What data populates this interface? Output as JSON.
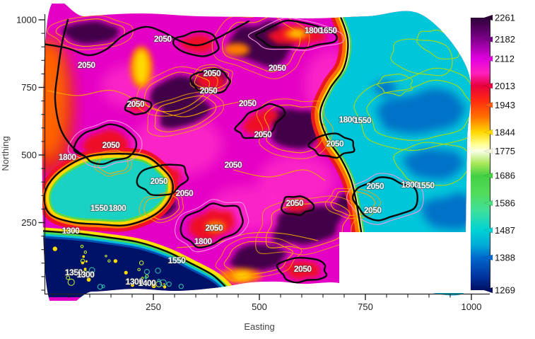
{
  "figure": {
    "background": "#ffffff",
    "axes": {
      "x": {
        "label": "Easting",
        "min": 0,
        "max": 1000,
        "major_ticks": [
          250,
          500,
          750,
          1000
        ],
        "minor_interval": 50
      },
      "y": {
        "label": "Northing",
        "min": 0,
        "max": 1000,
        "major_ticks": [
          250,
          500,
          750,
          1000
        ],
        "minor_interval": 50
      }
    }
  },
  "chart_data": {
    "type": "heatmap",
    "subtype": "filled-contour-surface-map",
    "title": "",
    "xlabel": "Easting",
    "ylabel": "Northing",
    "x_range": [
      0,
      1050
    ],
    "y_range": [
      0,
      1050
    ],
    "grid": false,
    "legend_position": "right-colorbar",
    "contour_interval_minor": 50,
    "contour_interval_major": 250,
    "major_contour_levels": [
      1300,
      1550,
      1800,
      2050
    ],
    "colorbar": {
      "position": "right",
      "tick_levels": [
        {
          "value": 2261,
          "color": "#2e0038"
        },
        {
          "value": 2182,
          "color": "#740082"
        },
        {
          "value": 2112,
          "color": "#e000e0"
        },
        {
          "value": 2013,
          "color": "#e8003c"
        },
        {
          "value": 1943,
          "color": "#ff5a14"
        },
        {
          "value": 1844,
          "color": "#ffd800"
        },
        {
          "value": 1775,
          "color": "#f4f6da"
        },
        {
          "value": 1686,
          "color": "#44d044"
        },
        {
          "value": 1586,
          "color": "#48de7e"
        },
        {
          "value": 1487,
          "color": "#00d2d4"
        },
        {
          "value": 1388,
          "color": "#0068cc"
        },
        {
          "value": 1269,
          "color": "#001064"
        }
      ],
      "gradient_stops": [
        {
          "value": 2261,
          "color": "#2e0038"
        },
        {
          "value": 2200,
          "color": "#6a0078"
        },
        {
          "value": 2112,
          "color": "#e000e0"
        },
        {
          "value": 2060,
          "color": "#ff20c0"
        },
        {
          "value": 2013,
          "color": "#e8003c"
        },
        {
          "value": 1960,
          "color": "#ff2a10"
        },
        {
          "value": 1900,
          "color": "#ff7000"
        },
        {
          "value": 1844,
          "color": "#ffd800"
        },
        {
          "value": 1800,
          "color": "#ffff90"
        },
        {
          "value": 1775,
          "color": "#fbffe6"
        },
        {
          "value": 1730,
          "color": "#a8e858"
        },
        {
          "value": 1686,
          "color": "#44d044"
        },
        {
          "value": 1620,
          "color": "#52dc5c"
        },
        {
          "value": 1560,
          "color": "#40e09a"
        },
        {
          "value": 1487,
          "color": "#00d2d4"
        },
        {
          "value": 1430,
          "color": "#00a8d8"
        },
        {
          "value": 1388,
          "color": "#0068cc"
        },
        {
          "value": 1320,
          "color": "#0034a0"
        },
        {
          "value": 1269,
          "color": "#001064"
        }
      ]
    },
    "contour_labels": [
      {
        "level": 2050,
        "easting": 92,
        "northing": 832
      },
      {
        "level": 2050,
        "easting": 272,
        "northing": 929
      },
      {
        "level": 2050,
        "easting": 388,
        "northing": 803
      },
      {
        "level": 2050,
        "easting": 380,
        "northing": 738
      },
      {
        "level": 2050,
        "easting": 542,
        "northing": 822
      },
      {
        "level": 1800,
        "easting": 627,
        "northing": 961
      },
      {
        "level": 1650,
        "easting": 662,
        "northing": 961
      },
      {
        "level": 1800,
        "easting": 47,
        "northing": 492
      },
      {
        "level": 2050,
        "easting": 150,
        "northing": 537
      },
      {
        "level": 2050,
        "easting": 208,
        "northing": 688
      },
      {
        "level": 2050,
        "easting": 472,
        "northing": 691
      },
      {
        "level": 2050,
        "easting": 508,
        "northing": 576
      },
      {
        "level": 2050,
        "easting": 438,
        "northing": 463
      },
      {
        "level": 2050,
        "easting": 263,
        "northing": 403
      },
      {
        "level": 2050,
        "easting": 323,
        "northing": 359
      },
      {
        "level": 1550,
        "easting": 122,
        "northing": 304
      },
      {
        "level": 1800,
        "easting": 165,
        "northing": 304
      },
      {
        "level": 1300,
        "easting": 55,
        "northing": 220
      },
      {
        "level": 2050,
        "easting": 393,
        "northing": 230
      },
      {
        "level": 1800,
        "easting": 367,
        "northing": 181
      },
      {
        "level": 1550,
        "easting": 305,
        "northing": 110
      },
      {
        "level": 2050,
        "easting": 583,
        "northing": 322
      },
      {
        "level": 2050,
        "easting": 602,
        "northing": 79
      },
      {
        "level": 1300,
        "easting": 205,
        "northing": 31
      },
      {
        "level": 1400,
        "easting": 235,
        "northing": 26
      },
      {
        "level": 1350,
        "easting": 62,
        "northing": 65
      },
      {
        "level": 1300,
        "easting": 90,
        "northing": 58
      },
      {
        "level": 1800,
        "easting": 708,
        "northing": 631
      },
      {
        "level": 1550,
        "easting": 743,
        "northing": 628
      },
      {
        "level": 2050,
        "easting": 678,
        "northing": 542
      },
      {
        "level": 2050,
        "easting": 773,
        "northing": 385
      },
      {
        "level": 1800,
        "easting": 855,
        "northing": 390
      },
      {
        "level": 1550,
        "easting": 892,
        "northing": 387
      },
      {
        "level": 2050,
        "easting": 767,
        "northing": 296
      }
    ],
    "blanked_region": {
      "shape": "rectangle",
      "easting_range": [
        688,
        1000
      ],
      "northing_range": [
        0,
        215
      ]
    }
  }
}
